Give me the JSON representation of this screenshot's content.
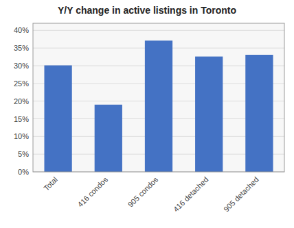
{
  "chart_data": {
    "type": "bar",
    "title": "Y/Y change in active listings in Toronto",
    "categories": [
      "Total",
      "416 condos",
      "905 condos",
      "416 detached",
      "905 detached"
    ],
    "values": [
      0.301,
      0.19,
      0.371,
      0.326,
      0.331
    ],
    "color": "#4472C4",
    "ylim": [
      0,
      0.42
    ],
    "yticks": [
      {
        "value": 0.0,
        "label": "0%"
      },
      {
        "value": 0.05,
        "label": "5%"
      },
      {
        "value": 0.1,
        "label": "10%"
      },
      {
        "value": 0.15,
        "label": "15%"
      },
      {
        "value": 0.2,
        "label": "20%"
      },
      {
        "value": 0.25,
        "label": "25%"
      },
      {
        "value": 0.3,
        "label": "30%"
      },
      {
        "value": 0.35,
        "label": "35%"
      },
      {
        "value": 0.4,
        "label": "40%"
      }
    ],
    "grid": true
  }
}
